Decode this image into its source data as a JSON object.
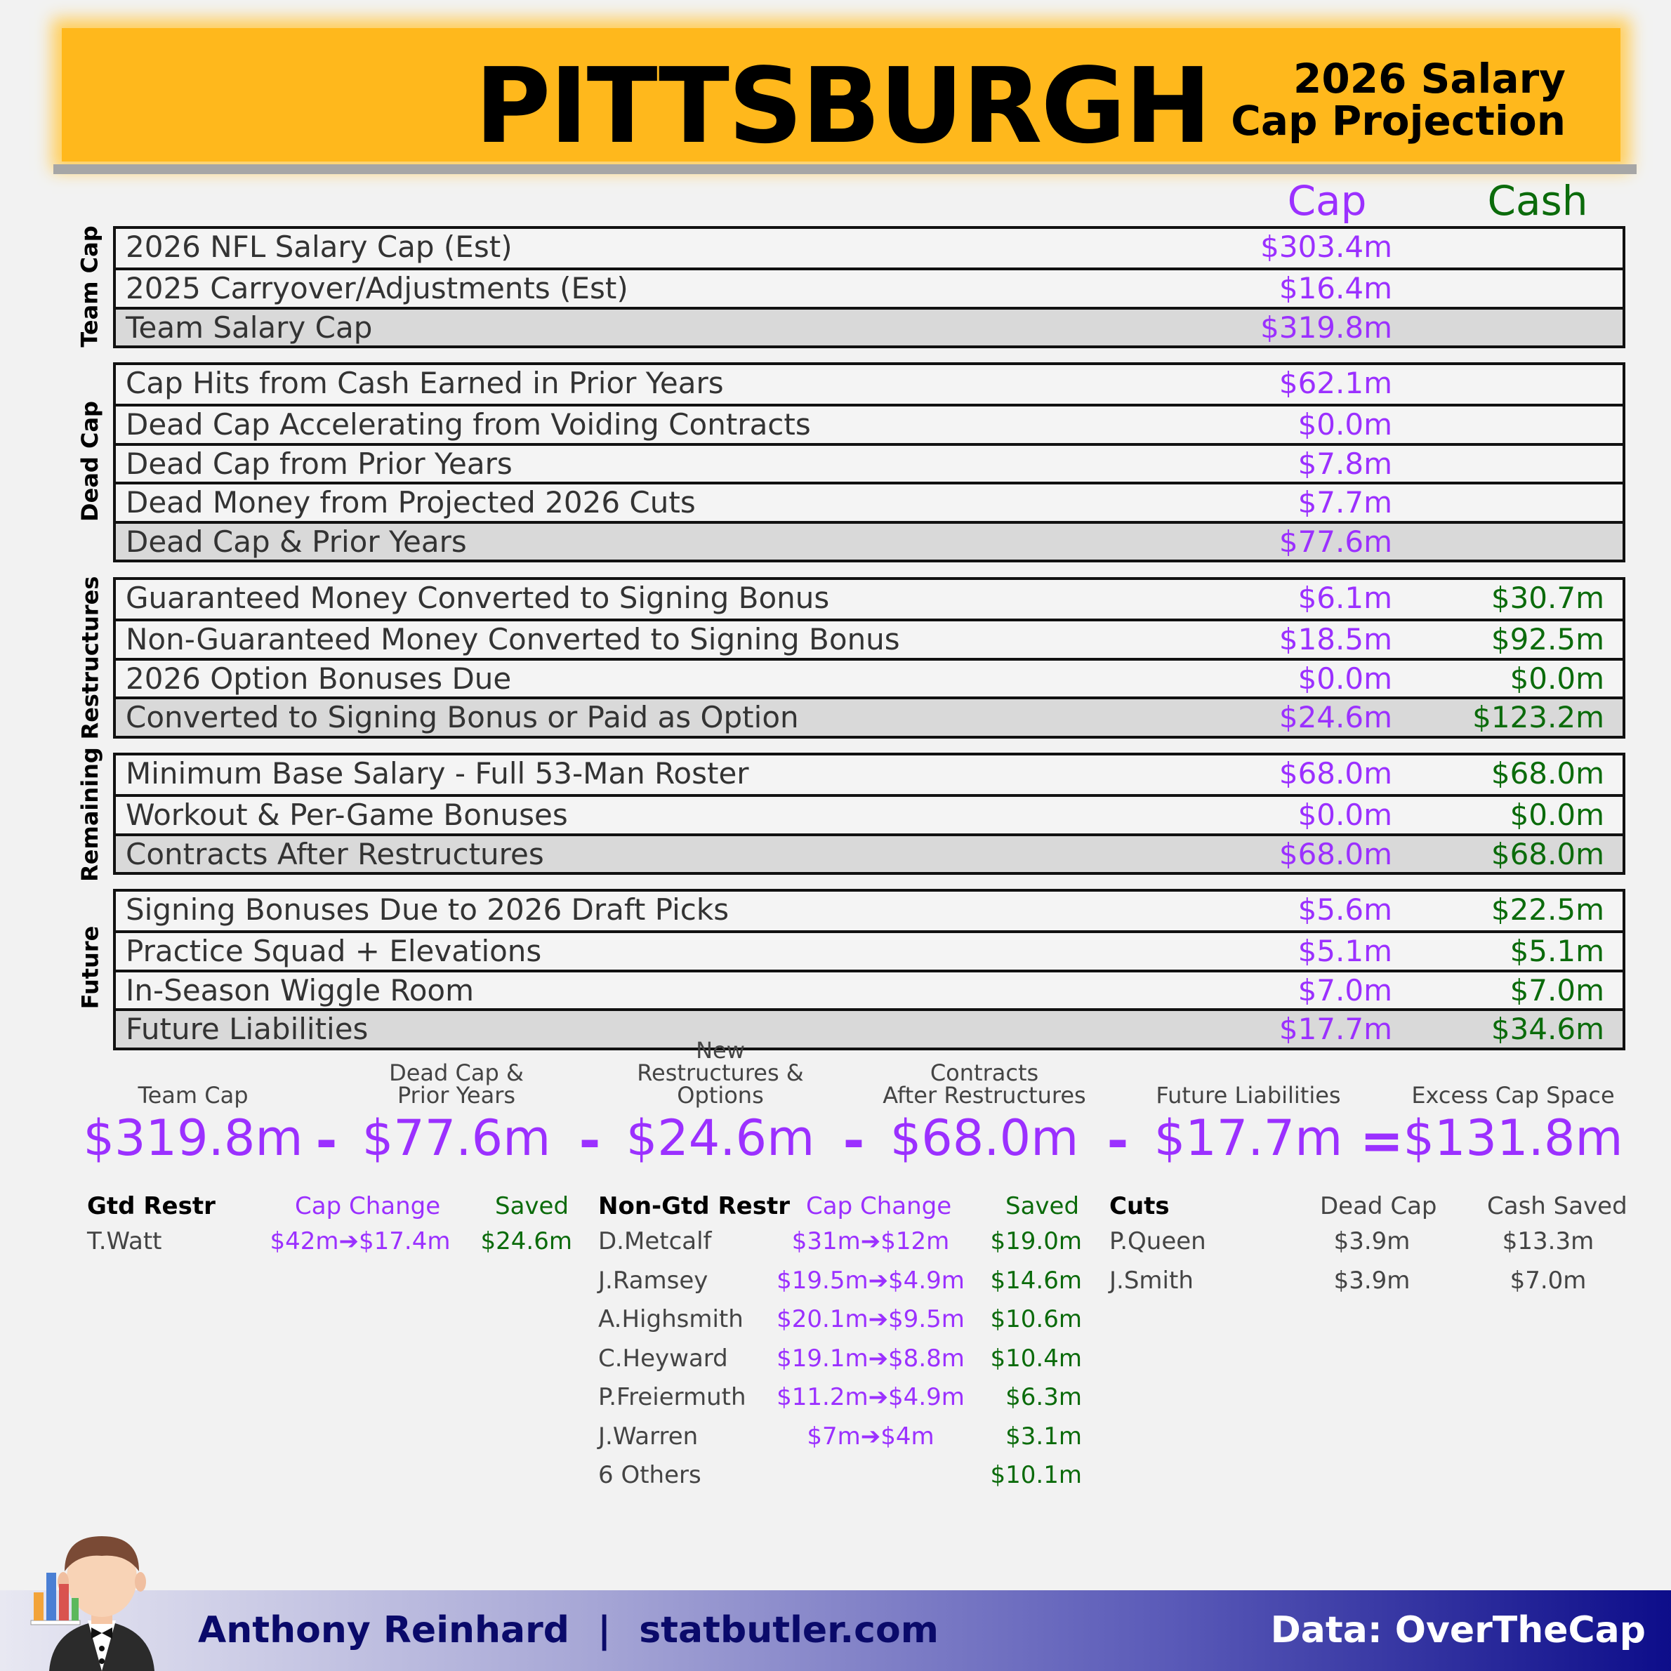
{
  "header": {
    "team": "PITTSBURGH",
    "subtitle_line1": "2026 Salary",
    "subtitle_line2": "Cap Projection"
  },
  "columns": {
    "cap": "Cap",
    "cash": "Cash"
  },
  "sections": [
    {
      "label": "Team Cap",
      "rows": [
        {
          "label": "2026 NFL Salary Cap (Est)",
          "cap": "$303.4m",
          "cash": ""
        },
        {
          "label": "2025 Carryover/Adjustments (Est)",
          "cap": "$16.4m",
          "cash": ""
        },
        {
          "label": "Team Salary Cap",
          "cap": "$319.8m",
          "cash": "",
          "total": true
        }
      ]
    },
    {
      "label": "Dead Cap",
      "rows": [
        {
          "label": "Cap Hits from Cash Earned in Prior Years",
          "cap": "$62.1m",
          "cash": ""
        },
        {
          "label": "Dead Cap Accelerating from Voiding Contracts",
          "cap": "$0.0m",
          "cash": ""
        },
        {
          "label": "Dead Cap from Prior Years",
          "cap": "$7.8m",
          "cash": ""
        },
        {
          "label": "Dead Money from Projected 2026 Cuts",
          "cap": "$7.7m",
          "cash": ""
        },
        {
          "label": "Dead Cap & Prior Years",
          "cap": "$77.6m",
          "cash": "",
          "total": true
        }
      ]
    },
    {
      "label": "Restructures",
      "rows": [
        {
          "label": "Guaranteed Money Converted to Signing Bonus",
          "cap": "$6.1m",
          "cash": "$30.7m"
        },
        {
          "label": "Non-Guaranteed Money Converted to Signing Bonus",
          "cap": "$18.5m",
          "cash": "$92.5m"
        },
        {
          "label": "2026 Option Bonuses Due",
          "cap": "$0.0m",
          "cash": "$0.0m"
        },
        {
          "label": "Converted to Signing Bonus or Paid as Option",
          "cap": "$24.6m",
          "cash": "$123.2m",
          "total": true
        }
      ]
    },
    {
      "label": "Remaining",
      "rows": [
        {
          "label": "Minimum Base Salary - Full 53-Man Roster",
          "cap": "$68.0m",
          "cash": "$68.0m"
        },
        {
          "label": "Workout & Per-Game Bonuses",
          "cap": "$0.0m",
          "cash": "$0.0m"
        },
        {
          "label": "Contracts After Restructures",
          "cap": "$68.0m",
          "cash": "$68.0m",
          "total": true
        }
      ]
    },
    {
      "label": "Future",
      "rows": [
        {
          "label": "Signing Bonuses Due to 2026 Draft Picks",
          "cap": "$5.6m",
          "cash": "$22.5m"
        },
        {
          "label": "Practice Squad + Elevations",
          "cap": "$5.1m",
          "cash": "$5.1m"
        },
        {
          "label": "In-Season Wiggle Room",
          "cap": "$7.0m",
          "cash": "$7.0m"
        },
        {
          "label": "Future Liabilities",
          "cap": "$17.7m",
          "cash": "$34.6m",
          "total": true
        }
      ]
    }
  ],
  "equation": {
    "items": [
      {
        "head1": "",
        "head2": "Team Cap",
        "value": "$319.8m"
      },
      {
        "head1": "Dead Cap &",
        "head2": "Prior Years",
        "value": "$77.6m"
      },
      {
        "head1": "New",
        "head2": "Restructures & Options",
        "value": "$24.6m"
      },
      {
        "head1": "Contracts",
        "head2": "After Restructures",
        "value": "$68.0m"
      },
      {
        "head1": "",
        "head2": "Future Liabilities",
        "value": "$17.7m"
      },
      {
        "head1": "",
        "head2": "Excess Cap Space",
        "value": "$131.8m"
      }
    ],
    "ops": [
      "-",
      "-",
      "-",
      "-",
      "="
    ]
  },
  "gtd": {
    "title": "Gtd Restr",
    "col_change": "Cap Change",
    "col_saved": "Saved",
    "rows": [
      {
        "name": "T.Watt",
        "change": "$42m➔$17.4m",
        "saved": "$24.6m"
      }
    ]
  },
  "nongtd": {
    "title": "Non-Gtd Restr",
    "col_change": "Cap Change",
    "col_saved": "Saved",
    "rows": [
      {
        "name": "D.Metcalf",
        "change": "$31m➔$12m",
        "saved": "$19.0m"
      },
      {
        "name": "J.Ramsey",
        "change": "$19.5m➔$4.9m",
        "saved": "$14.6m"
      },
      {
        "name": "A.Highsmith",
        "change": "$20.1m➔$9.5m",
        "saved": "$10.6m"
      },
      {
        "name": "C.Heyward",
        "change": "$19.1m➔$8.8m",
        "saved": "$10.4m"
      },
      {
        "name": "P.Freiermuth",
        "change": "$11.2m➔$4.9m",
        "saved": "$6.3m"
      },
      {
        "name": "J.Warren",
        "change": "$7m➔$4m",
        "saved": "$3.1m"
      },
      {
        "name": "6 Others",
        "change": "",
        "saved": "$10.1m"
      }
    ]
  },
  "cuts": {
    "title": "Cuts",
    "col_dead": "Dead Cap",
    "col_saved": "Cash Saved",
    "rows": [
      {
        "name": "P.Queen",
        "dead": "$3.9m",
        "saved": "$13.3m"
      },
      {
        "name": "J.Smith",
        "dead": "$3.9m",
        "saved": "$7.0m"
      }
    ]
  },
  "footer": {
    "author": "Anthony Reinhard",
    "separator": "|",
    "site": "statbutler.com",
    "source": "Data: OverTheCap"
  },
  "colors": {
    "banner": "#ffb81c",
    "cap": "#9b30ff",
    "cash": "#0b6b0b",
    "footer_end": "#0d0d8a"
  },
  "icons": {
    "mascot": "butler-icon",
    "chart": "bar-chart-icon"
  }
}
